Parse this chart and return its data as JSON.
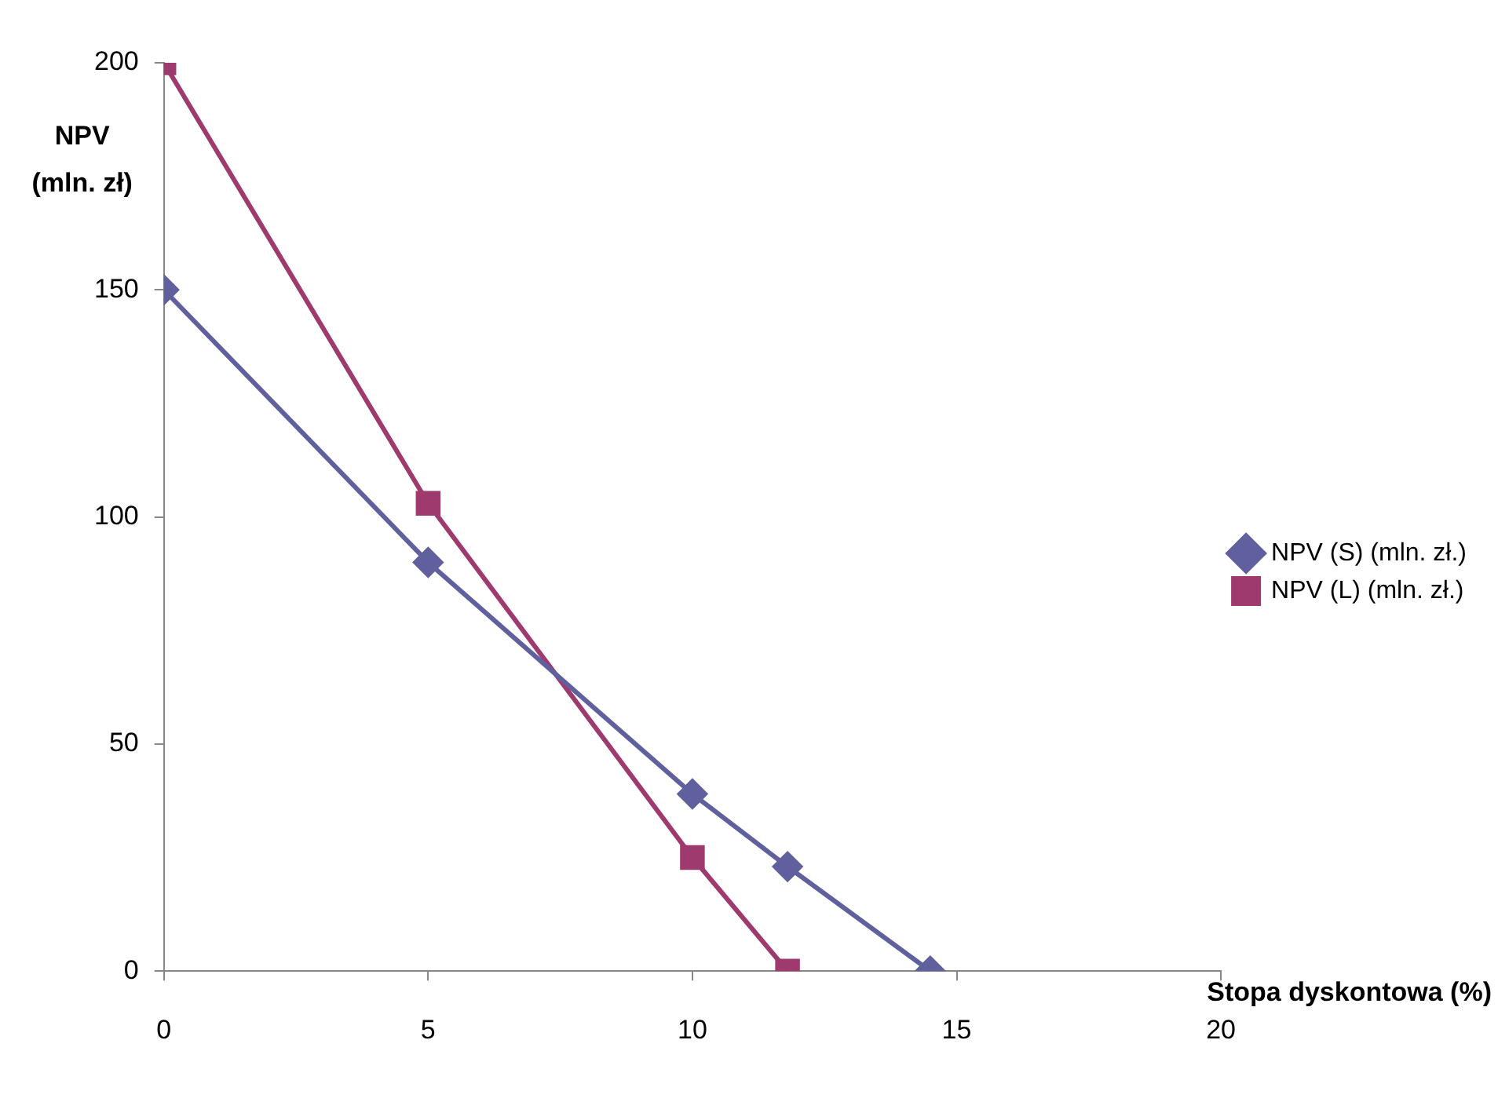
{
  "chart_data": {
    "type": "line",
    "xlabel": "Stopa dyskontowa (%)",
    "ylabel": "NPV (mln. zł)",
    "xlim": [
      0,
      20
    ],
    "xticks": [
      0,
      5,
      10,
      15,
      20
    ],
    "ylim": [
      0,
      200
    ],
    "yticks": [
      0,
      50,
      100,
      150,
      200
    ],
    "grid": false,
    "legend": "right",
    "line_style": "solid",
    "series": [
      {
        "name": "NPV (S) (mln. zł.)",
        "color": "#60609e",
        "marker": "diamond",
        "x": [
          0,
          5,
          10,
          11.8,
          14.5
        ],
        "values": [
          150,
          90,
          39,
          23,
          0
        ]
      },
      {
        "name": "NPV (L) (mln. zł.)",
        "color": "#9e3a6e",
        "marker": "square",
        "x": [
          0,
          5,
          10,
          11.8
        ],
        "values": [
          200,
          103,
          25,
          0
        ]
      }
    ]
  }
}
